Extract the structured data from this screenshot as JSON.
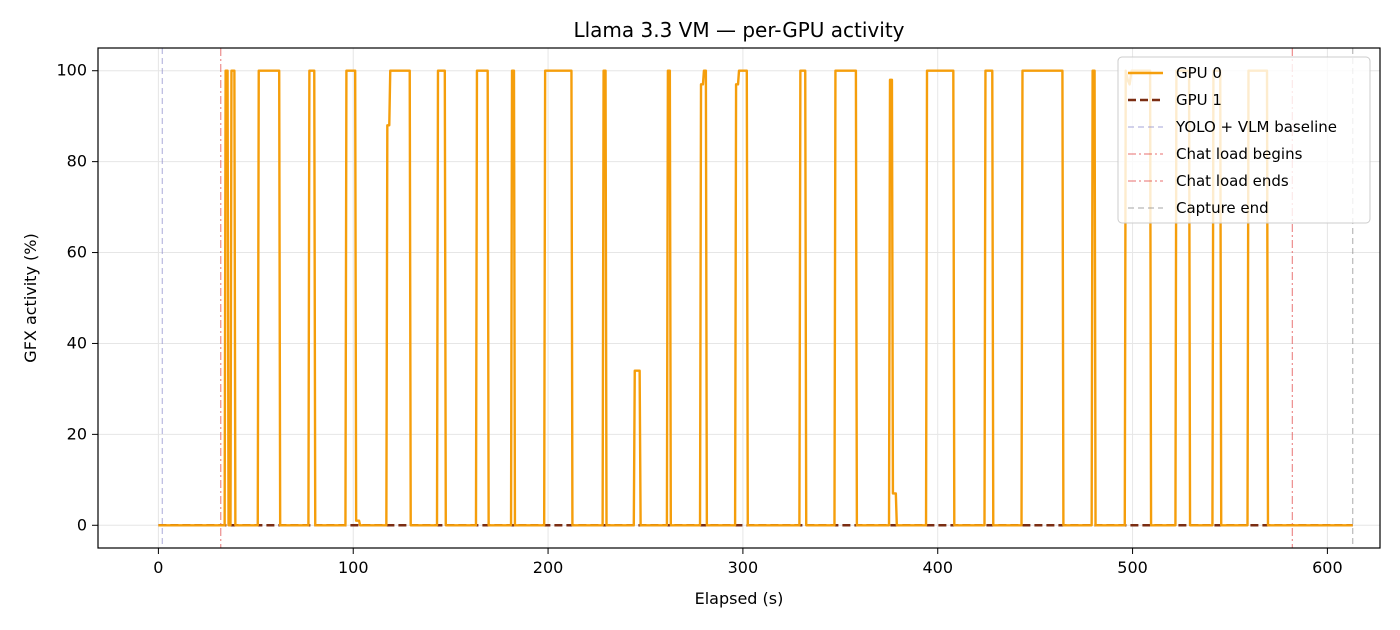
{
  "chart_data": {
    "type": "line",
    "title": "Llama 3.3 VM — per-GPU activity",
    "xlabel": "Elapsed (s)",
    "ylabel": "GFX activity (%)",
    "xlim": [
      -31,
      627
    ],
    "ylim": [
      -5,
      105
    ],
    "xticks": [
      0,
      100,
      200,
      300,
      400,
      500,
      600
    ],
    "yticks": [
      0,
      20,
      40,
      60,
      80,
      100
    ],
    "grid": true,
    "legend_position": "top-right",
    "series": [
      {
        "name": "GPU 0",
        "color": "#f59e0b",
        "style": "solid",
        "points": [
          [
            0,
            0
          ],
          [
            34,
            0
          ],
          [
            34.5,
            100
          ],
          [
            35.5,
            100
          ],
          [
            36,
            0
          ],
          [
            37,
            0
          ],
          [
            37.5,
            100
          ],
          [
            39,
            100
          ],
          [
            39.5,
            0
          ],
          [
            51,
            0
          ],
          [
            51.5,
            100
          ],
          [
            62,
            100
          ],
          [
            62.5,
            0
          ],
          [
            77,
            0
          ],
          [
            77.5,
            100
          ],
          [
            80,
            100
          ],
          [
            80.5,
            0
          ],
          [
            96,
            0
          ],
          [
            96.5,
            100
          ],
          [
            101,
            100
          ],
          [
            101.5,
            1
          ],
          [
            103,
            1
          ],
          [
            103.5,
            0
          ],
          [
            117,
            0
          ],
          [
            117.5,
            88
          ],
          [
            118.5,
            88
          ],
          [
            119,
            100
          ],
          [
            129,
            100
          ],
          [
            129.5,
            0
          ],
          [
            143,
            0
          ],
          [
            143.5,
            100
          ],
          [
            147,
            100
          ],
          [
            147.5,
            0
          ],
          [
            163,
            0
          ],
          [
            163.5,
            100
          ],
          [
            169,
            100
          ],
          [
            169.5,
            0
          ],
          [
            181,
            0
          ],
          [
            181.5,
            100
          ],
          [
            182.5,
            100
          ],
          [
            183,
            0
          ],
          [
            198,
            0
          ],
          [
            198.5,
            100
          ],
          [
            212,
            100
          ],
          [
            212.5,
            0
          ],
          [
            228,
            0
          ],
          [
            228.5,
            100
          ],
          [
            229.5,
            100
          ],
          [
            230,
            0
          ],
          [
            244,
            0
          ],
          [
            244.5,
            34
          ],
          [
            247,
            34
          ],
          [
            247.5,
            0
          ],
          [
            261,
            0
          ],
          [
            261.5,
            100
          ],
          [
            262.5,
            100
          ],
          [
            263,
            0
          ],
          [
            278,
            0
          ],
          [
            278.5,
            97
          ],
          [
            279.5,
            97
          ],
          [
            280,
            100
          ],
          [
            281,
            100
          ],
          [
            281.5,
            0
          ],
          [
            296,
            0
          ],
          [
            296.5,
            97
          ],
          [
            297.5,
            97
          ],
          [
            298,
            100
          ],
          [
            302,
            100
          ],
          [
            302.5,
            0
          ],
          [
            329,
            0
          ],
          [
            329.5,
            100
          ],
          [
            332,
            100
          ],
          [
            332.5,
            0
          ],
          [
            347,
            0
          ],
          [
            347.5,
            100
          ],
          [
            358,
            100
          ],
          [
            358.5,
            0
          ],
          [
            375,
            0
          ],
          [
            375.5,
            98
          ],
          [
            376.5,
            98
          ],
          [
            377,
            7
          ],
          [
            378.5,
            7
          ],
          [
            379,
            0
          ],
          [
            394,
            0
          ],
          [
            394.5,
            100
          ],
          [
            408,
            100
          ],
          [
            408.5,
            0
          ],
          [
            424,
            0
          ],
          [
            424.5,
            100
          ],
          [
            428,
            100
          ],
          [
            428.5,
            0
          ],
          [
            443,
            0
          ],
          [
            443.5,
            100
          ],
          [
            464,
            100
          ],
          [
            464.5,
            0
          ],
          [
            479,
            0
          ],
          [
            479.5,
            100
          ],
          [
            480.5,
            100
          ],
          [
            481,
            0
          ],
          [
            496,
            0
          ],
          [
            496.5,
            100
          ],
          [
            497.5,
            98
          ],
          [
            498.5,
            97
          ],
          [
            499.5,
            100
          ],
          [
            500,
            100
          ],
          [
            509,
            100
          ],
          [
            509.5,
            0
          ],
          [
            522,
            0
          ],
          [
            522.5,
            100
          ],
          [
            529,
            100
          ],
          [
            529.5,
            0
          ],
          [
            541,
            0
          ],
          [
            541.5,
            100
          ],
          [
            545,
            100
          ],
          [
            545.5,
            0
          ],
          [
            559,
            0
          ],
          [
            559.5,
            100
          ],
          [
            569,
            100
          ],
          [
            569.5,
            0
          ],
          [
            613,
            0
          ]
        ]
      },
      {
        "name": "GPU 1",
        "color": "#7b2d12",
        "style": "dashed",
        "points": [
          [
            0,
            0
          ],
          [
            613,
            0
          ]
        ]
      }
    ],
    "markers": [
      {
        "name": "YOLO + VLM baseline",
        "x": 2,
        "color": "#8888cc",
        "style": "dashed"
      },
      {
        "name": "Chat load begins",
        "x": 32,
        "color": "#e04040",
        "style": "dashdot"
      },
      {
        "name": "Chat load ends",
        "x": 582,
        "color": "#e04040",
        "style": "dashdot"
      },
      {
        "name": "Capture end",
        "x": 613,
        "color": "#888888",
        "style": "dashed"
      }
    ]
  }
}
